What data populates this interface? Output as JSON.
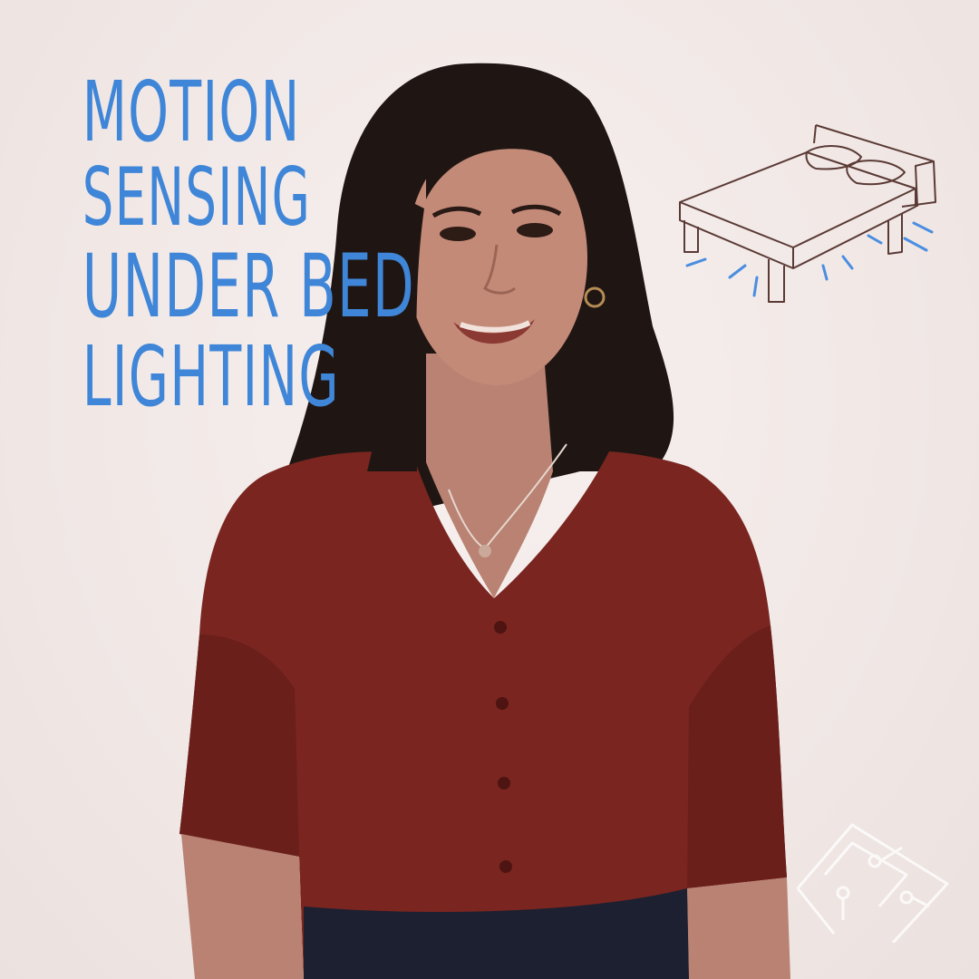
{
  "title": {
    "line1": "MOTION",
    "line2": "SENSING",
    "line3": "UNDER BED",
    "line4": "LIGHTING"
  },
  "icons": {
    "bed": "bed-icon",
    "watermark": "circuit-board-watermark-icon"
  },
  "colors": {
    "title_text": "#3f86d8",
    "background": "#f3ecea",
    "shirt": "#7a2520",
    "hair": "#1f1613",
    "skin": "#b98272",
    "bed_lines": "#5a3a35",
    "light_rays": "#4a8ee0"
  }
}
